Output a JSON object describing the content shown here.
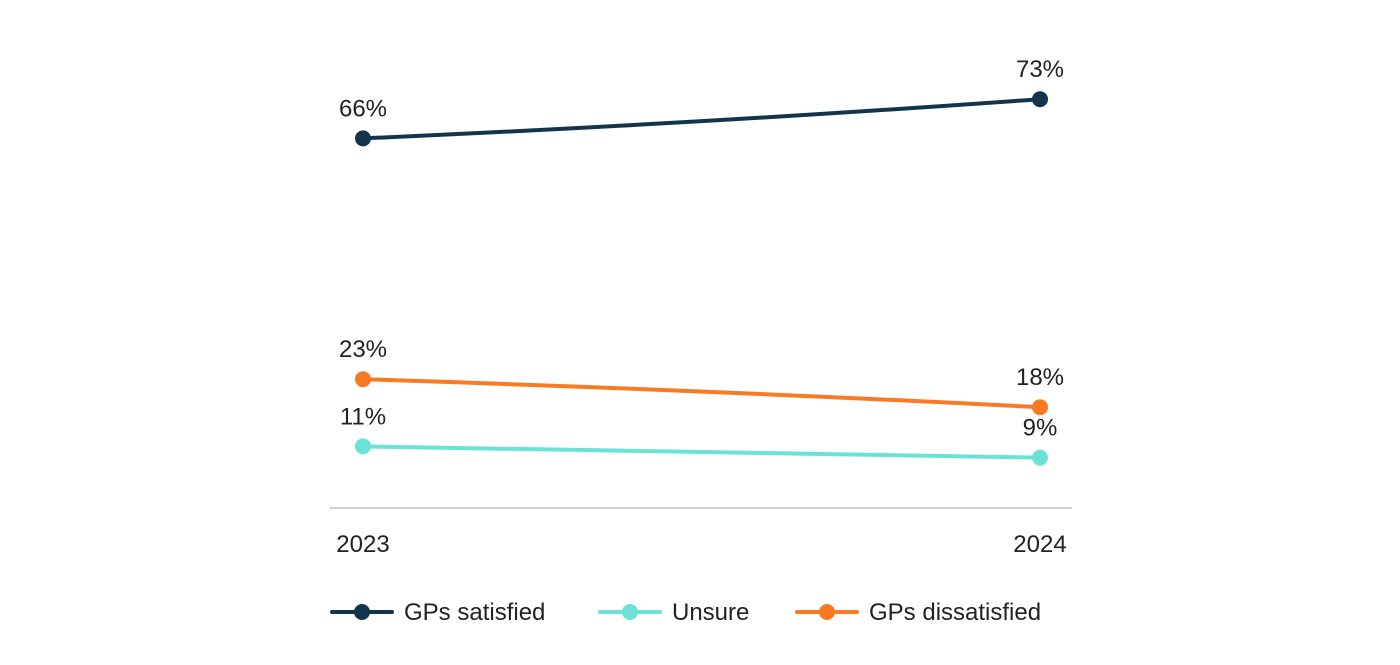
{
  "chart_data": {
    "type": "line",
    "title": "",
    "xlabel": "",
    "ylabel": "",
    "categories": [
      "2023",
      "2024"
    ],
    "ylim": [
      0,
      90
    ],
    "grid": false,
    "legend_position": "bottom",
    "series": [
      {
        "name": "GPs satisfied",
        "values": [
          66,
          73
        ],
        "labels": [
          "66%",
          "73%"
        ],
        "color": "#12344d"
      },
      {
        "name": "Unsure",
        "values": [
          11,
          9
        ],
        "labels": [
          "11%",
          "9%"
        ],
        "color": "#6ae3d6"
      },
      {
        "name": "GPs dissatisfied",
        "values": [
          23,
          18
        ],
        "labels": [
          "23%",
          "18%"
        ],
        "color": "#f97a23"
      }
    ]
  }
}
